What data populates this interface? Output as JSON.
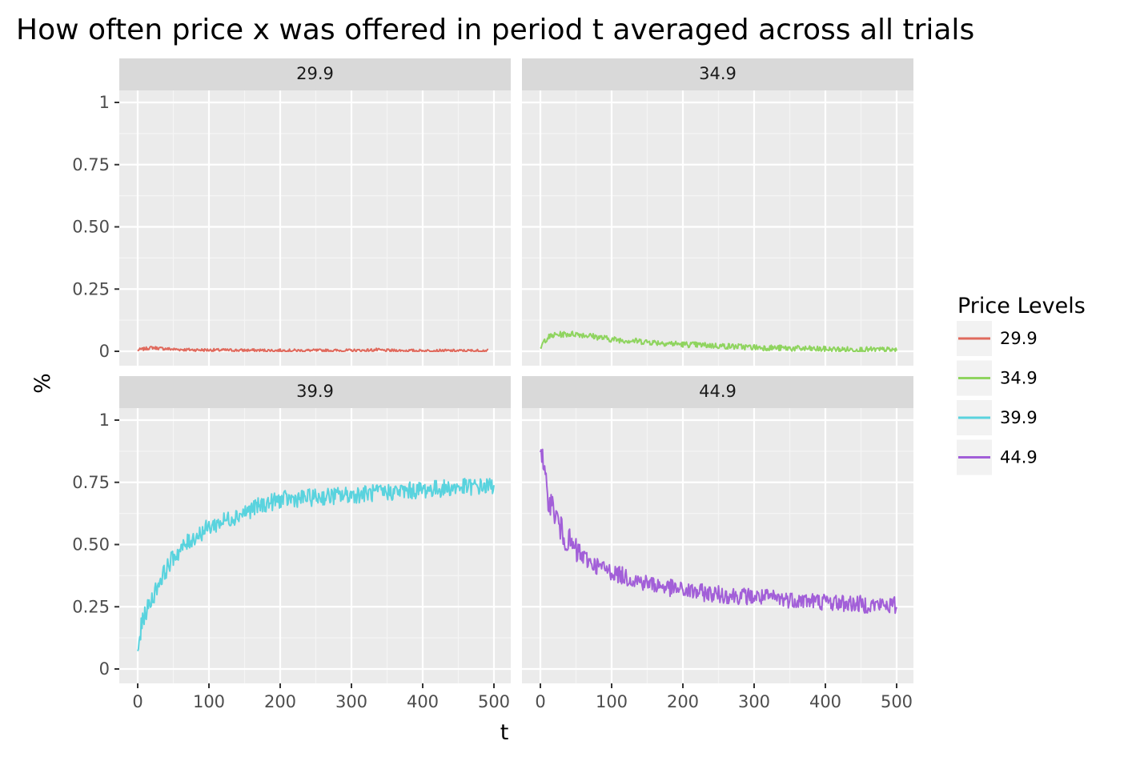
{
  "chart_data": {
    "type": "line",
    "title": "How often price x was offered in period t averaged across all trials",
    "xlabel": "t",
    "ylabel": "%",
    "xlim": [
      0,
      500
    ],
    "ylim": [
      0,
      1
    ],
    "x_ticks": [
      0,
      100,
      200,
      300,
      400,
      500
    ],
    "x_tick_labels": [
      "0",
      "100",
      "200",
      "300",
      "400",
      "500"
    ],
    "y_ticks": [
      0,
      0.25,
      0.5,
      0.75,
      1
    ],
    "y_tick_labels": [
      "0",
      "0.25",
      "0.50",
      "0.75",
      "1"
    ],
    "grid": true,
    "legend": {
      "title": "Price Levels",
      "position": "right",
      "entries": [
        "29.9",
        "34.9",
        "39.9",
        "44.9"
      ]
    },
    "facets": [
      {
        "label": "29.9",
        "color": "#e06a5d",
        "x": [
          0,
          10,
          20,
          30,
          40,
          50,
          75,
          100,
          150,
          200,
          250,
          300,
          325,
          335,
          345,
          400,
          450,
          492
        ],
        "y": [
          0.005,
          0.01,
          0.015,
          0.012,
          0.01,
          0.008,
          0.006,
          0.005,
          0.004,
          0.003,
          0.003,
          0.003,
          0.004,
          0.006,
          0.003,
          0.002,
          0.002,
          0.002
        ]
      },
      {
        "label": "34.9",
        "color": "#8fd45f",
        "x": [
          0,
          5,
          10,
          20,
          30,
          50,
          75,
          100,
          150,
          200,
          250,
          300,
          350,
          400,
          450,
          500
        ],
        "y": [
          0.01,
          0.04,
          0.055,
          0.065,
          0.068,
          0.07,
          0.06,
          0.048,
          0.038,
          0.028,
          0.022,
          0.016,
          0.012,
          0.008,
          0.006,
          0.005
        ]
      },
      {
        "label": "39.9",
        "color": "#59d3de",
        "x": [
          0,
          5,
          10,
          20,
          30,
          50,
          75,
          100,
          125,
          150,
          175,
          200,
          250,
          300,
          350,
          400,
          450,
          500
        ],
        "y": [
          0.06,
          0.17,
          0.22,
          0.28,
          0.35,
          0.45,
          0.52,
          0.57,
          0.6,
          0.63,
          0.66,
          0.68,
          0.69,
          0.7,
          0.71,
          0.72,
          0.73,
          0.735
        ]
      },
      {
        "label": "44.9",
        "color": "#a25fd8",
        "x": [
          0,
          5,
          10,
          20,
          30,
          50,
          75,
          100,
          125,
          150,
          200,
          250,
          300,
          350,
          400,
          450,
          500
        ],
        "y": [
          0.92,
          0.78,
          0.7,
          0.63,
          0.55,
          0.47,
          0.42,
          0.39,
          0.365,
          0.345,
          0.315,
          0.3,
          0.29,
          0.28,
          0.27,
          0.26,
          0.255
        ]
      }
    ]
  }
}
